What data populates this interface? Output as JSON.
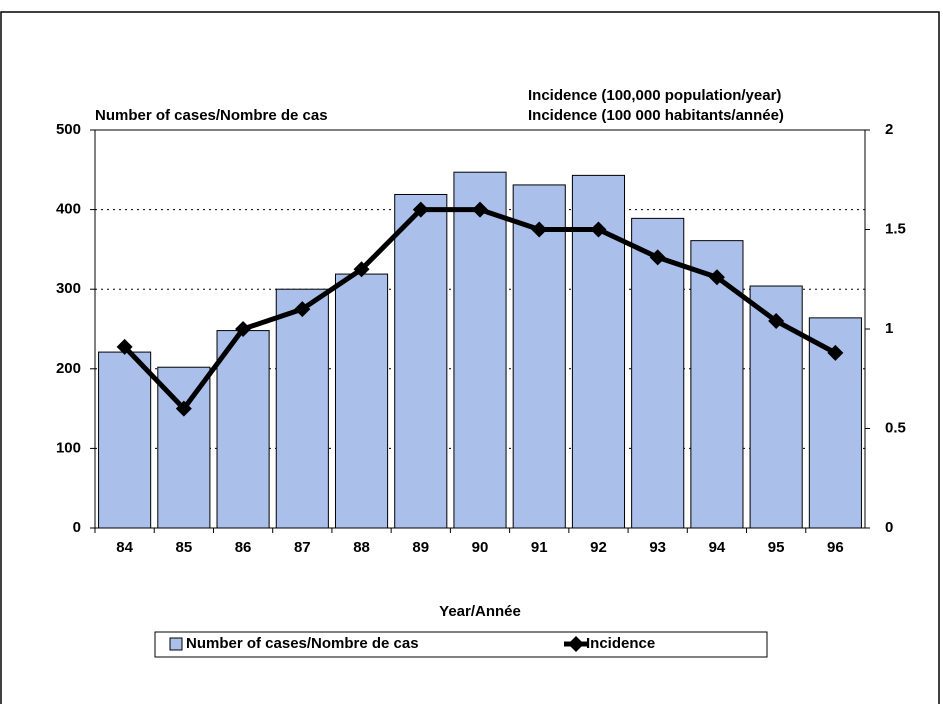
{
  "chart_data": {
    "type": "bar_line",
    "ylabel": "Number of cases/Nombre de cas",
    "y2label": [
      "Incidence (100,000 population/year)",
      "Incidence (100 000 habitants/année)"
    ],
    "xlabel": "Year/Année",
    "categories": [
      "84",
      "85",
      "86",
      "87",
      "88",
      "89",
      "90",
      "91",
      "92",
      "93",
      "94",
      "95",
      "96"
    ],
    "series": [
      {
        "name": "Number of cases/Nombre de cas",
        "type": "bar",
        "color": "#aabfea",
        "values": [
          221,
          202,
          248,
          300,
          319,
          419,
          447,
          431,
          443,
          389,
          361,
          304,
          264
        ]
      },
      {
        "name": "Incidence",
        "type": "line",
        "axis": "y2",
        "color": "#000000",
        "values": [
          0.91,
          0.6,
          1.0,
          1.1,
          1.3,
          1.6,
          1.6,
          1.5,
          1.5,
          1.36,
          1.26,
          1.04,
          0.88
        ]
      }
    ],
    "ylim": [
      0,
      500
    ],
    "yticks": [
      0,
      100,
      200,
      300,
      400,
      500
    ],
    "y2lim": [
      0,
      2
    ],
    "y2ticks": [
      0,
      0.5,
      1,
      1.5,
      2
    ],
    "grid": true,
    "legend": "bottom"
  }
}
